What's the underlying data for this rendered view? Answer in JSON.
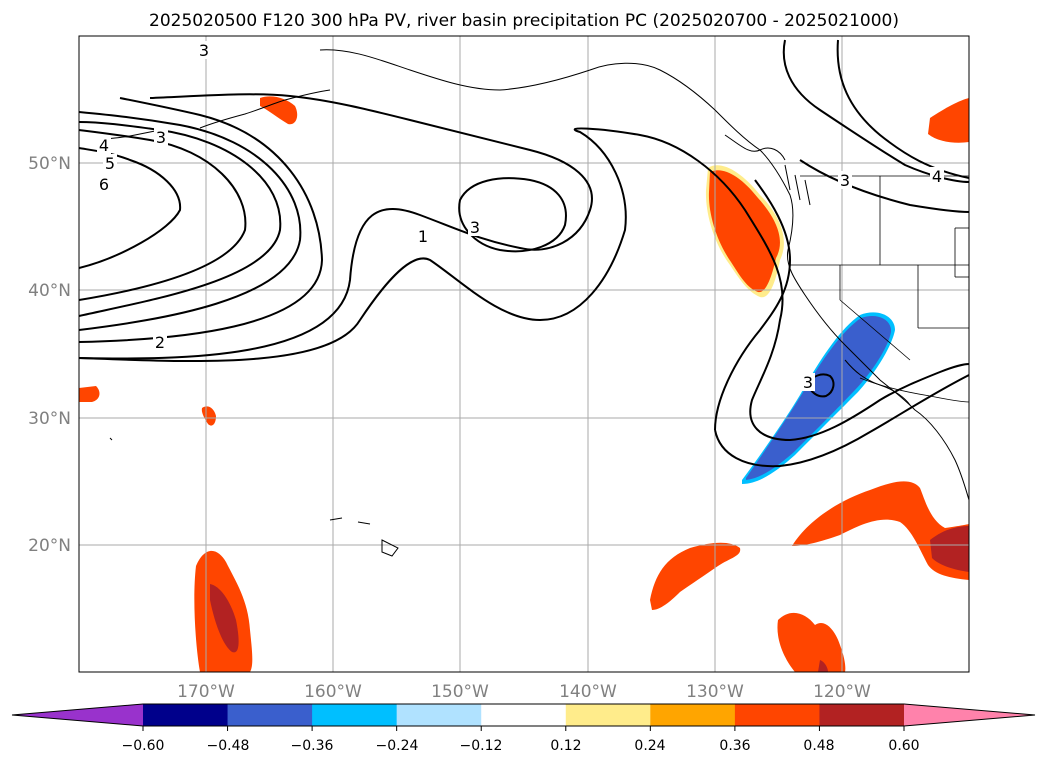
{
  "title": "2025020500 F120 300 hPa PV, river basin precipitation PC (2025020700 - 2025021000)",
  "map": {
    "lon_range": [
      -180,
      -110
    ],
    "lat_range": [
      10,
      60
    ],
    "lat_labels": [
      "50°N",
      "40°N",
      "30°N",
      "20°N"
    ],
    "lat_values": [
      50,
      40,
      30,
      20
    ],
    "lon_labels": [
      "170°W",
      "160°W",
      "150°W",
      "140°W",
      "130°W",
      "120°W"
    ],
    "lon_values": [
      -170,
      -160,
      -150,
      -140,
      -130,
      -120
    ],
    "grid": true,
    "contour_labels": [
      "3",
      "4",
      "5",
      "6",
      "3",
      "2",
      "1",
      "3",
      "3",
      "4",
      "3"
    ]
  },
  "colorbar": {
    "ticks": [
      "−0.60",
      "−0.48",
      "−0.36",
      "−0.24",
      "−0.12",
      "0.12",
      "0.24",
      "0.36",
      "0.48",
      "0.60"
    ],
    "colors": [
      "#9932cc",
      "#00008b",
      "#3a5fcd",
      "#00bfff",
      "#b0e2ff",
      "#ffffff",
      "#ffec8b",
      "#ffa500",
      "#ff4500",
      "#b22222",
      "#ff82ab"
    ]
  }
}
